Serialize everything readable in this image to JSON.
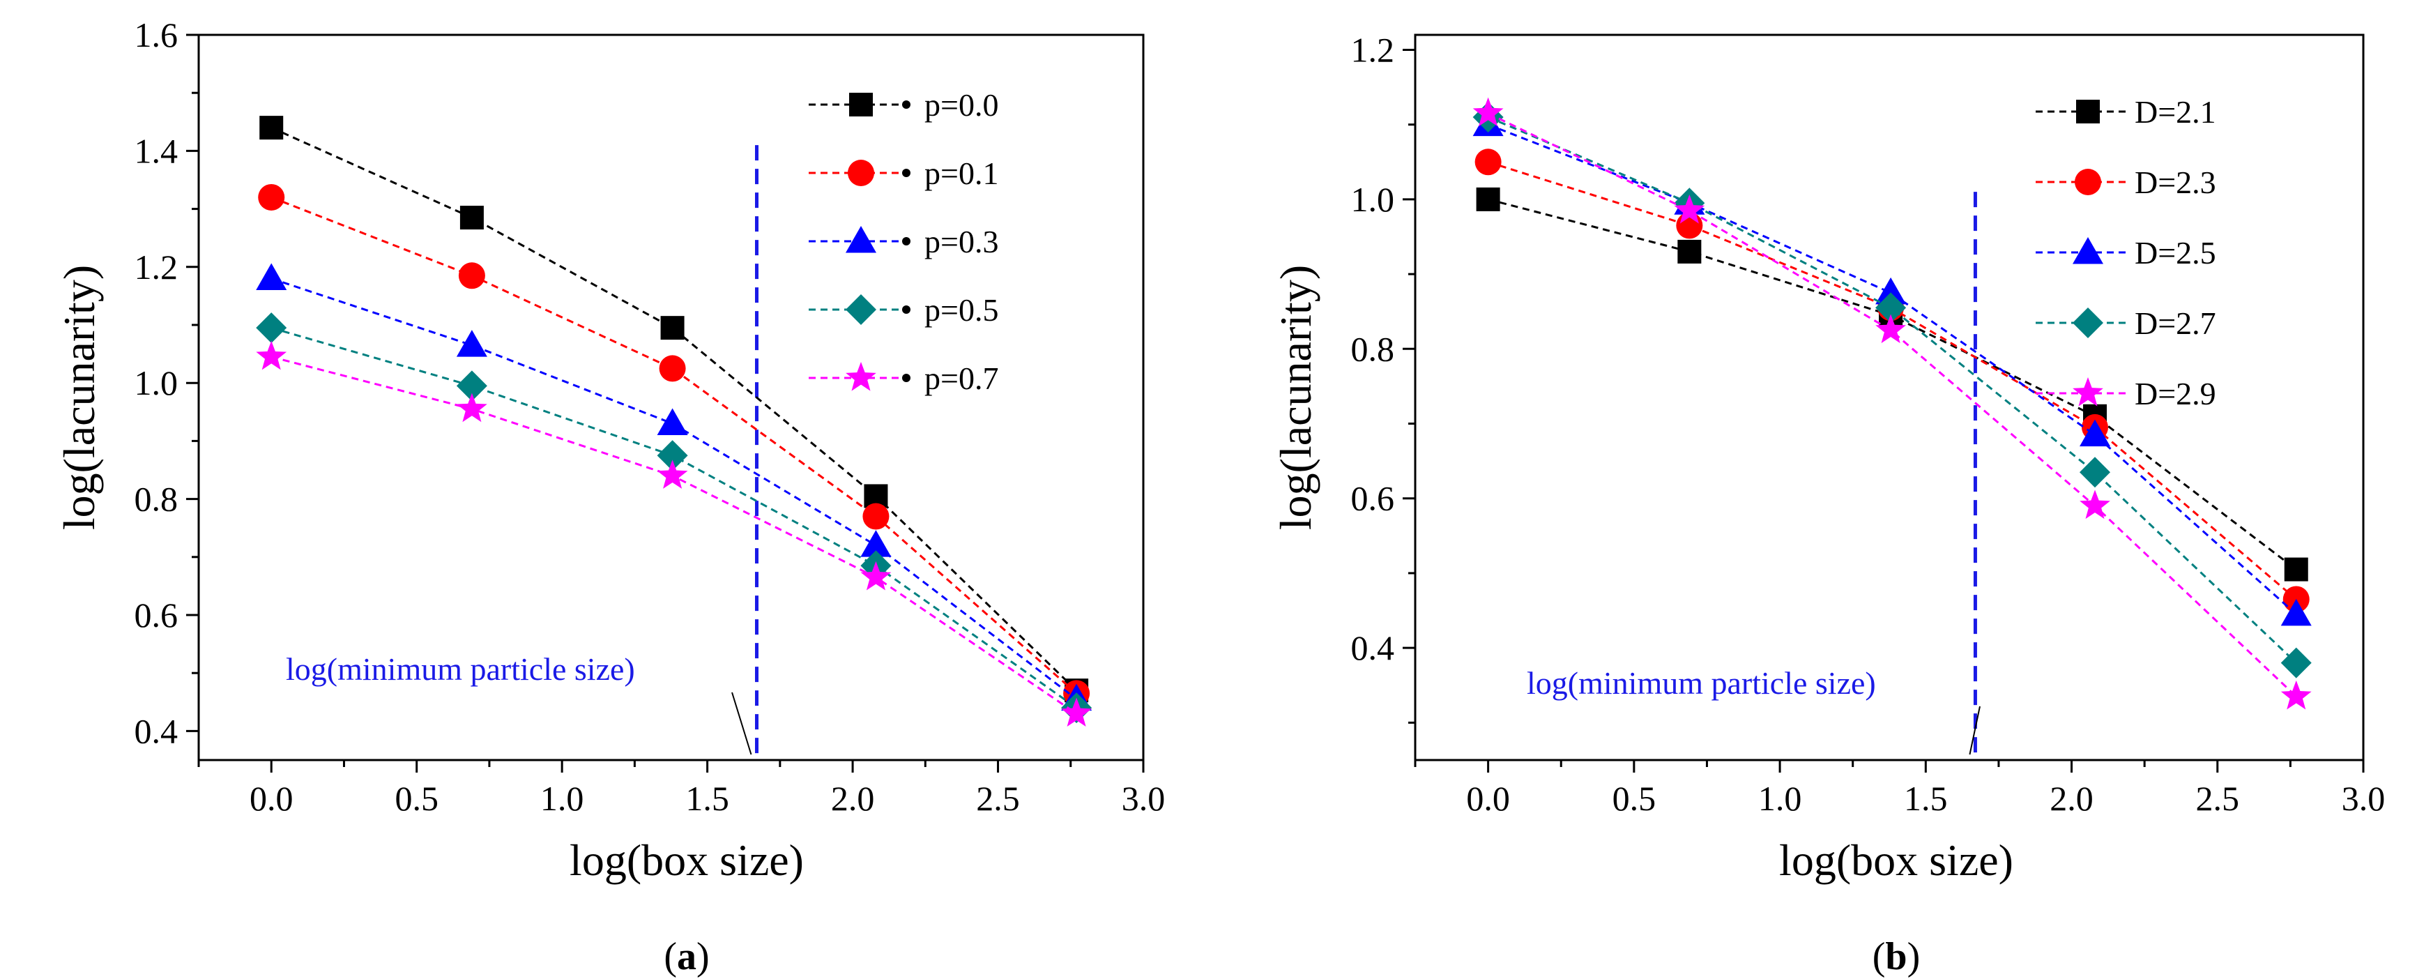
{
  "colors": {
    "p=0.0": "#000000",
    "p=0.1": "#ff0000",
    "p=0.3": "#0000ff",
    "p=0.5": "#008080",
    "p=0.7": "#ff00ff",
    "vline": "#1a1ae6"
  },
  "chart_data": [
    {
      "type": "line",
      "panel_label_open": "(",
      "panel_label_letter": "a",
      "panel_label_close": ")",
      "xlabel": "log(box size)",
      "ylabel": "log(lacunarity)",
      "xlim": [
        -0.25,
        3.0
      ],
      "ylim": [
        0.35,
        1.6
      ],
      "xticks": [
        0.0,
        0.5,
        1.0,
        1.5,
        2.0,
        2.5,
        3.0
      ],
      "xtick_labels": [
        "0.0",
        "0.5",
        "1.0",
        "1.5",
        "2.0",
        "2.5",
        "3.0"
      ],
      "yticks": [
        0.4,
        0.6,
        0.8,
        1.0,
        1.2,
        1.4,
        1.6
      ],
      "ytick_labels": [
        "0.4",
        "0.6",
        "0.8",
        "1.0",
        "1.2",
        "1.4",
        "1.6"
      ],
      "legend_position": "top-right",
      "legend_style": "line-marker-dot",
      "vline": {
        "x": 1.67,
        "y_top": 1.41,
        "label": "log(minimum particle size)"
      },
      "x": [
        0.0,
        0.69,
        1.38,
        2.08,
        2.77
      ],
      "series": [
        {
          "name": "p=0.0",
          "marker": "square",
          "values": [
            1.44,
            1.285,
            1.095,
            0.805,
            0.47
          ]
        },
        {
          "name": "p=0.1",
          "marker": "circle",
          "values": [
            1.32,
            1.185,
            1.025,
            0.77,
            0.465
          ]
        },
        {
          "name": "p=0.3",
          "marker": "triangle",
          "values": [
            1.18,
            1.065,
            0.93,
            0.72,
            0.455
          ]
        },
        {
          "name": "p=0.5",
          "marker": "diamond",
          "values": [
            1.095,
            0.995,
            0.875,
            0.685,
            0.44
          ]
        },
        {
          "name": "p=0.7",
          "marker": "star",
          "values": [
            1.045,
            0.955,
            0.84,
            0.665,
            0.43
          ]
        }
      ]
    },
    {
      "type": "line",
      "panel_label_open": "(",
      "panel_label_letter": "b",
      "panel_label_close": ")",
      "xlabel": "log(box size)",
      "ylabel": "log(lacunarity)",
      "xlim": [
        -0.25,
        3.0
      ],
      "ylim": [
        0.25,
        1.22
      ],
      "xticks": [
        0.0,
        0.5,
        1.0,
        1.5,
        2.0,
        2.5,
        3.0
      ],
      "xtick_labels": [
        "0.0",
        "0.5",
        "1.0",
        "1.5",
        "2.0",
        "2.5",
        "3.0"
      ],
      "yticks": [
        0.4,
        0.6,
        0.8,
        1.0,
        1.2
      ],
      "ytick_labels": [
        "0.4",
        "0.6",
        "0.8",
        "1.0",
        "1.2"
      ],
      "legend_position": "top-right",
      "legend_style": "line-marker",
      "vline": {
        "x": 1.67,
        "y_top": 1.01,
        "label": "log(minimum particle size)"
      },
      "x": [
        0.0,
        0.69,
        1.38,
        2.08,
        2.77
      ],
      "series": [
        {
          "name": "D=2.1",
          "marker": "square",
          "values": [
            1.0,
            0.93,
            0.845,
            0.71,
            0.505
          ]
        },
        {
          "name": "D=2.3",
          "marker": "circle",
          "values": [
            1.05,
            0.965,
            0.855,
            0.695,
            0.465
          ]
        },
        {
          "name": "D=2.5",
          "marker": "triangle",
          "values": [
            1.1,
            0.995,
            0.875,
            0.685,
            0.445
          ]
        },
        {
          "name": "D=2.7",
          "marker": "diamond",
          "values": [
            1.11,
            0.995,
            0.855,
            0.635,
            0.38
          ]
        },
        {
          "name": "D=2.9",
          "marker": "star",
          "values": [
            1.115,
            0.985,
            0.825,
            0.59,
            0.335
          ]
        }
      ]
    }
  ]
}
